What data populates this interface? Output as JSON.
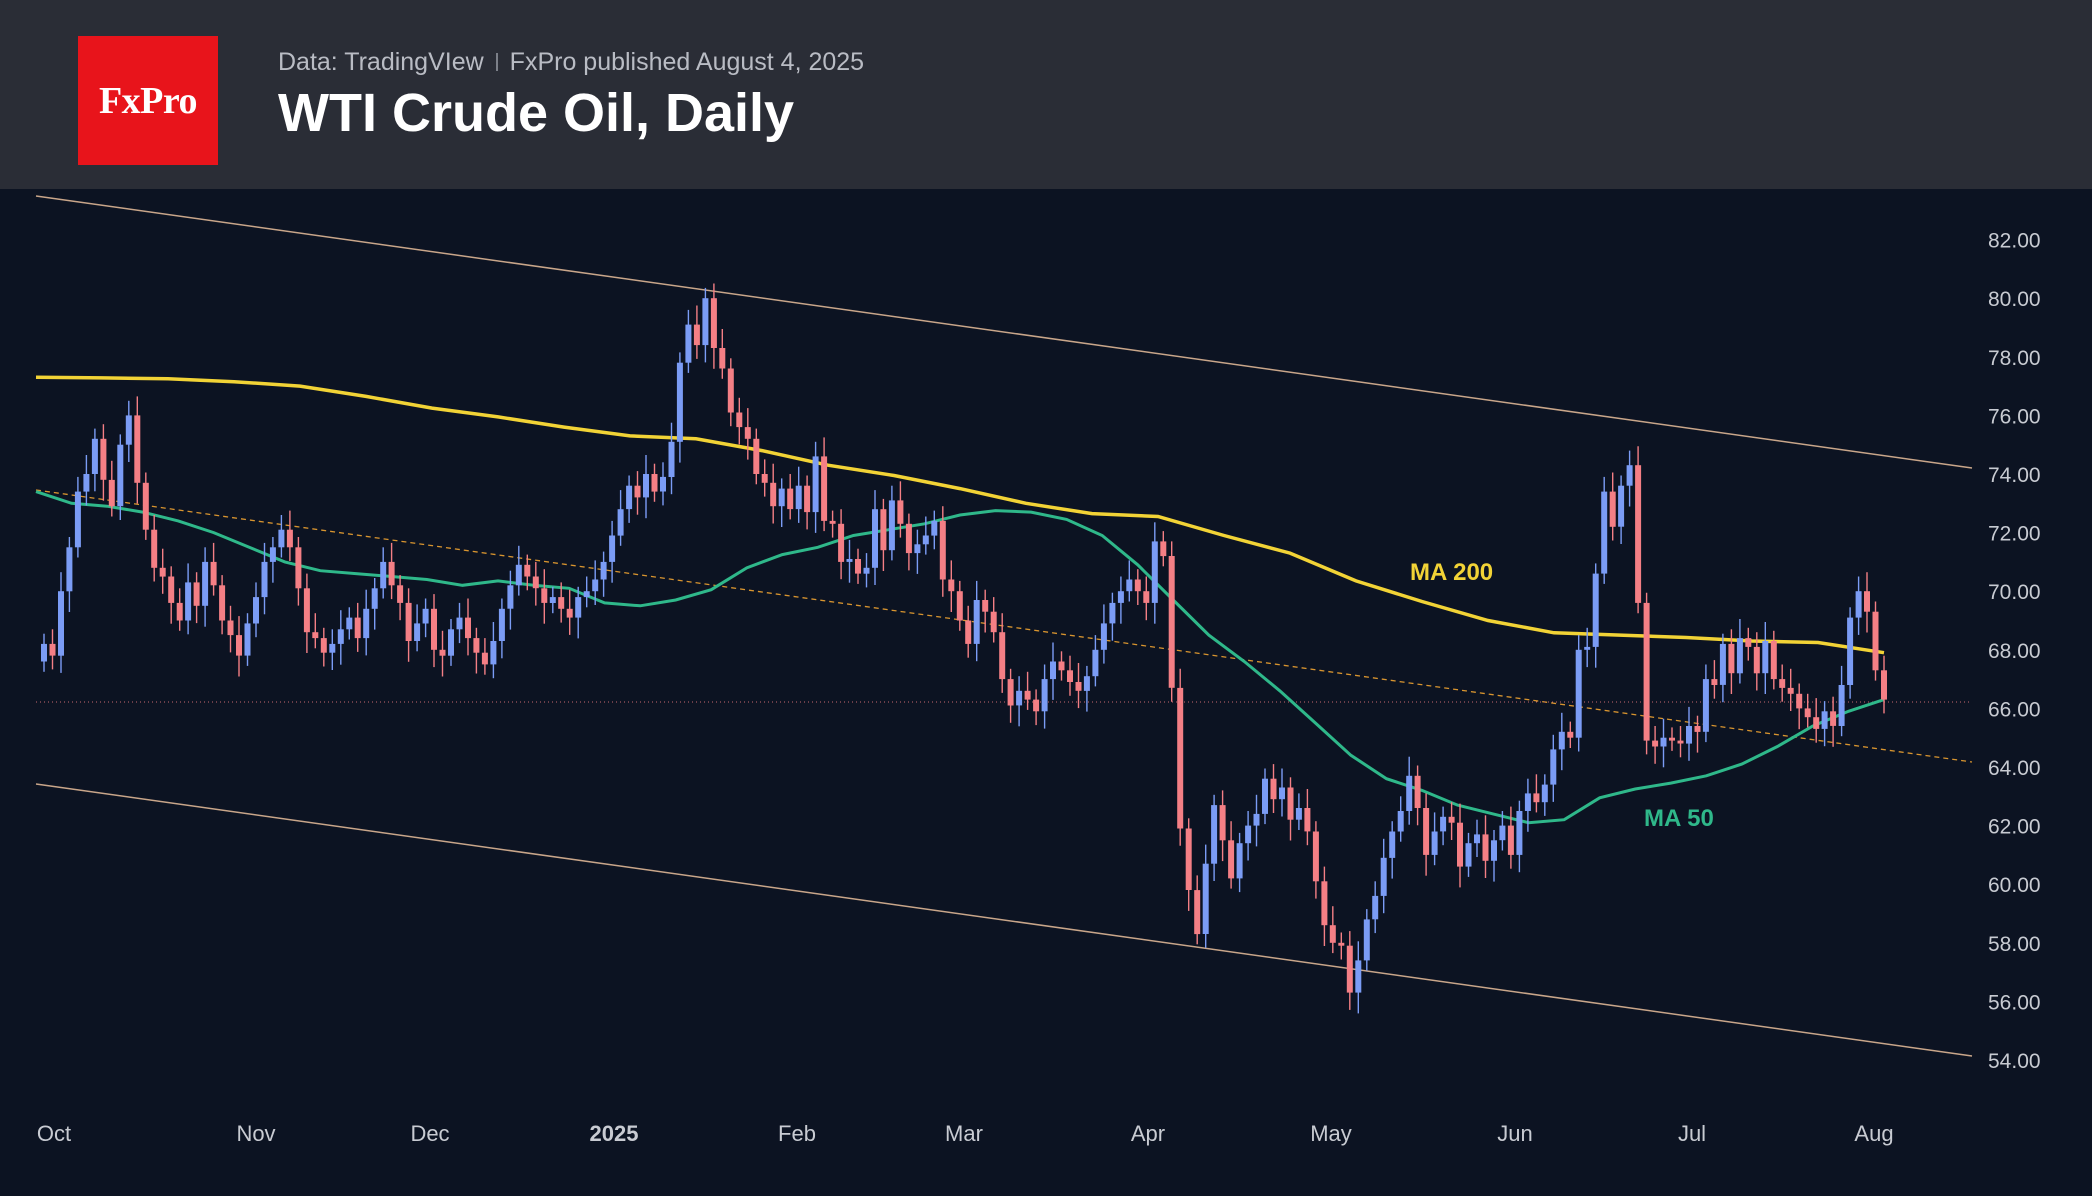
{
  "header": {
    "logo_text": "FxPro",
    "source": "Data: TradingVIew",
    "published": "FxPro published August 4, 2025",
    "title": "WTI Crude Oil, Daily"
  },
  "colors": {
    "header_bg": "#2a2d36",
    "chart_bg": "#0c1322",
    "logo_red": "#e8141b",
    "candle_up": "#7b9cf5",
    "candle_down": "#f47f85",
    "ma200": "#f2d336",
    "ma50": "#2fb88a",
    "channel": "#c9a68a",
    "midline": "#d9952f"
  },
  "chart_data": {
    "type": "candlestick",
    "title": "WTI Crude Oil, Daily",
    "x_ticks": [
      "Oct",
      "Nov",
      "Dec",
      "2025",
      "Feb",
      "Mar",
      "Apr",
      "May",
      "Jun",
      "Jul",
      "Aug"
    ],
    "y_ticks": [
      "54.00",
      "56.00",
      "58.00",
      "60.00",
      "62.00",
      "64.00",
      "66.00",
      "68.00",
      "70.00",
      "72.00",
      "74.00",
      "76.00",
      "78.00",
      "80.00",
      "82.00"
    ],
    "ylim": [
      52,
      84
    ],
    "grid": false,
    "annotations": [
      {
        "text": "MA 200",
        "series": "ma200"
      },
      {
        "text": "MA 50",
        "series": "ma50"
      }
    ],
    "close_values": [
      68.2,
      67.8,
      70.0,
      71.5,
      73.4,
      74.0,
      75.2,
      73.8,
      72.9,
      75.0,
      76.0,
      73.7,
      72.1,
      70.8,
      70.5,
      69.6,
      69.0,
      70.3,
      69.5,
      71.0,
      70.2,
      69.0,
      68.5,
      67.8,
      68.9,
      69.8,
      71.0,
      71.5,
      72.1,
      71.5,
      70.1,
      68.6,
      68.4,
      67.9,
      68.2,
      68.7,
      69.1,
      68.4,
      69.4,
      70.1,
      71.0,
      70.2,
      69.6,
      68.3,
      68.9,
      69.4,
      68.0,
      67.8,
      68.7,
      69.1,
      68.4,
      67.9,
      67.5,
      68.3,
      69.4,
      70.2,
      70.9,
      70.5,
      70.1,
      69.6,
      69.8,
      69.4,
      69.1,
      69.8,
      70.0,
      70.4,
      71.0,
      71.9,
      72.8,
      73.6,
      73.2,
      74.0,
      73.4,
      73.9,
      75.1,
      77.8,
      79.1,
      78.4,
      80.0,
      78.3,
      77.6,
      76.1,
      75.6,
      75.2,
      74.0,
      73.7,
      72.9,
      73.5,
      72.8,
      73.6,
      72.7,
      74.6,
      72.4,
      72.3,
      71.0,
      71.1,
      70.6,
      70.8,
      72.8,
      71.4,
      73.1,
      72.3,
      71.3,
      71.6,
      71.9,
      72.4,
      70.4,
      70.0,
      69.0,
      68.2,
      69.7,
      69.3,
      68.6,
      67.0,
      66.1,
      66.6,
      66.3,
      65.9,
      67.0,
      67.6,
      67.3,
      66.9,
      66.6,
      67.1,
      68.0,
      68.9,
      69.6,
      70.0,
      70.4,
      70.0,
      69.6,
      71.7,
      71.2,
      66.7,
      61.9,
      59.8,
      58.3,
      60.7,
      62.7,
      61.5,
      60.2,
      61.4,
      62.0,
      62.4,
      63.6,
      62.9,
      63.3,
      62.2,
      62.6,
      61.8,
      60.1,
      58.6,
      58.0,
      57.9,
      56.3,
      57.4,
      58.8,
      59.6,
      60.9,
      61.8,
      62.5,
      63.7,
      62.6,
      61.0,
      61.8,
      62.3,
      62.1,
      60.6,
      61.4,
      61.7,
      60.8,
      61.5,
      62.0,
      61.0,
      62.5,
      63.1,
      62.8,
      63.4,
      64.6,
      65.2,
      65.0,
      68.0,
      68.1,
      70.6,
      73.4,
      72.2,
      73.6,
      74.3,
      69.6,
      64.9,
      64.7,
      65.0,
      64.9,
      64.8,
      65.4,
      65.2,
      67.0,
      66.8,
      68.2,
      67.2,
      68.4,
      68.1,
      67.2,
      68.3,
      67.0,
      66.7,
      66.5,
      66.0,
      65.7,
      65.3,
      65.9,
      65.4,
      66.8,
      69.1,
      70.0,
      69.3,
      67.3,
      66.3
    ],
    "ma200_values": [
      77.3,
      77.28,
      77.25,
      77.15,
      77.0,
      76.65,
      76.25,
      75.95,
      75.6,
      75.3,
      75.2,
      74.8,
      74.3,
      73.95,
      73.5,
      73.0,
      72.65,
      72.55,
      71.9,
      71.3,
      70.35,
      69.65,
      69.0,
      68.58,
      68.5,
      68.42,
      68.3,
      68.25,
      67.9
    ],
    "ma50_values": [
      73.4,
      73.0,
      72.9,
      72.7,
      72.4,
      72.0,
      71.5,
      71.0,
      70.7,
      70.6,
      70.5,
      70.4,
      70.2,
      70.35,
      70.2,
      70.1,
      69.6,
      69.5,
      69.7,
      70.05,
      70.8,
      71.25,
      71.5,
      71.9,
      72.1,
      72.3,
      72.6,
      72.75,
      72.7,
      72.45,
      71.9,
      70.9,
      69.7,
      68.5,
      67.6,
      66.6,
      65.5,
      64.4,
      63.6,
      63.2,
      62.7,
      62.4,
      62.1,
      62.2,
      62.95,
      63.25,
      63.45,
      63.7,
      64.1,
      64.7,
      65.4,
      65.9,
      66.3
    ]
  }
}
